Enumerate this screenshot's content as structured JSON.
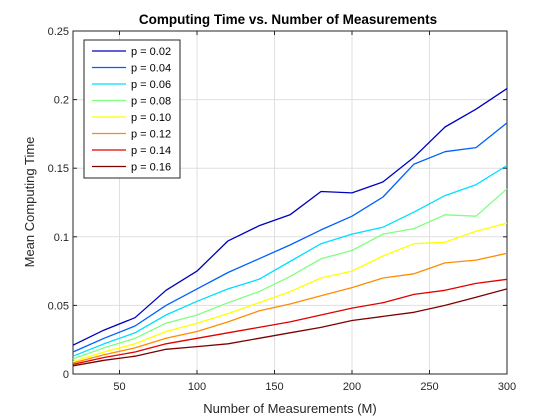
{
  "chart_data": {
    "type": "line",
    "title": "Computing Time vs. Number of Measurements",
    "xlabel": "Number of Measurements (M)",
    "ylabel": "Mean Computing Time",
    "xlim": [
      20,
      300
    ],
    "ylim": [
      0,
      0.25
    ],
    "xticks": [
      50,
      100,
      150,
      200,
      250,
      300
    ],
    "yticks": [
      0,
      0.05,
      0.1,
      0.15,
      0.2,
      0.25
    ],
    "xtick_labels": [
      "50",
      "100",
      "150",
      "200",
      "250",
      "300"
    ],
    "ytick_labels": [
      "0",
      "0.05",
      "0.1",
      "0.15",
      "0.2",
      "0.25"
    ],
    "grid": true,
    "legend_position": "top-left",
    "x": [
      20,
      40,
      60,
      80,
      100,
      120,
      140,
      160,
      180,
      200,
      220,
      240,
      260,
      280,
      300
    ],
    "series": [
      {
        "name": "p = 0.02",
        "color": "#0000bf",
        "values": [
          0.021,
          0.032,
          0.041,
          0.061,
          0.075,
          0.097,
          0.108,
          0.116,
          0.133,
          0.132,
          0.14,
          0.158,
          0.18,
          0.193,
          0.208
        ]
      },
      {
        "name": "p = 0.04",
        "color": "#0060ff",
        "values": [
          0.016,
          0.026,
          0.035,
          0.05,
          0.062,
          0.074,
          0.084,
          0.094,
          0.105,
          0.115,
          0.129,
          0.153,
          0.162,
          0.165,
          0.183
        ]
      },
      {
        "name": "p = 0.06",
        "color": "#00dfff",
        "values": [
          0.013,
          0.022,
          0.03,
          0.043,
          0.053,
          0.062,
          0.069,
          0.082,
          0.095,
          0.102,
          0.107,
          0.118,
          0.13,
          0.138,
          0.152
        ]
      },
      {
        "name": "p = 0.08",
        "color": "#80ff80",
        "values": [
          0.011,
          0.019,
          0.026,
          0.037,
          0.043,
          0.052,
          0.06,
          0.071,
          0.084,
          0.09,
          0.102,
          0.106,
          0.116,
          0.115,
          0.135
        ]
      },
      {
        "name": "p = 0.10",
        "color": "#ffff00",
        "values": [
          0.009,
          0.016,
          0.022,
          0.031,
          0.037,
          0.044,
          0.052,
          0.06,
          0.07,
          0.075,
          0.086,
          0.095,
          0.096,
          0.104,
          0.11
        ]
      },
      {
        "name": "p = 0.12",
        "color": "#ff8c00",
        "values": [
          0.008,
          0.014,
          0.019,
          0.026,
          0.031,
          0.038,
          0.046,
          0.051,
          0.057,
          0.063,
          0.07,
          0.073,
          0.081,
          0.083,
          0.088
        ]
      },
      {
        "name": "p = 0.14",
        "color": "#e00000",
        "values": [
          0.007,
          0.012,
          0.016,
          0.022,
          0.026,
          0.03,
          0.034,
          0.038,
          0.043,
          0.048,
          0.052,
          0.058,
          0.061,
          0.066,
          0.069
        ]
      },
      {
        "name": "p = 0.16",
        "color": "#7f0000",
        "values": [
          0.006,
          0.01,
          0.013,
          0.018,
          0.02,
          0.022,
          0.026,
          0.03,
          0.034,
          0.039,
          0.042,
          0.045,
          0.05,
          0.056,
          0.062
        ]
      }
    ]
  }
}
